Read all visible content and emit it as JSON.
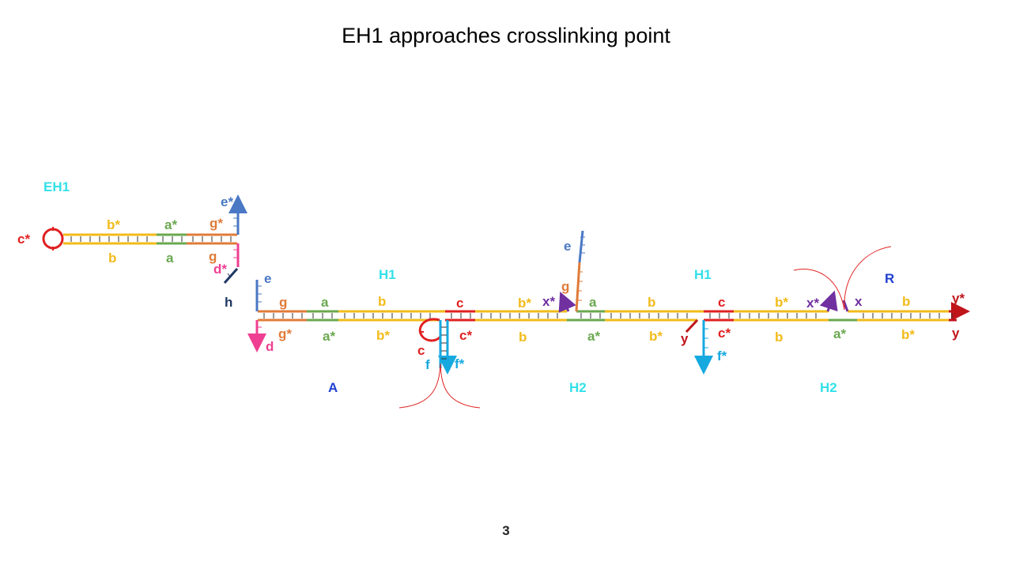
{
  "title": "EH1 approaches crosslinking point",
  "page_number": "3",
  "colors": {
    "b": "#f2bb1a",
    "a": "#6aa84f",
    "g": "#e07b39",
    "c": "#e02020",
    "e": "#4a78c4",
    "d": "#ef3f92",
    "h": "#1f3864",
    "f": "#16a9e0",
    "x": "#7030a0",
    "y": "#c0141b",
    "cyan": "#33e0e8",
    "blue": "#1f3fd0"
  },
  "labels": {
    "eh1": {
      "name": "EH1",
      "c_star": "c*",
      "b_star": "b*",
      "a_star": "a*",
      "g_star": "g*",
      "e_star": "e*",
      "b": "b",
      "a": "a",
      "g": "g",
      "d_star": "d*",
      "h": "h"
    },
    "left": {
      "e": "e",
      "g": "g",
      "a": "a",
      "b": "b",
      "g_star": "g*",
      "a_star": "a*",
      "b_star": "b*",
      "d": "d",
      "complex_A": "A"
    },
    "h1_first": {
      "name": "H1",
      "c": "c",
      "c_star": "c*",
      "c_loop": "c",
      "f": "f",
      "f_star": "f*",
      "b_star": "b*",
      "b": "b",
      "x_star": "x*",
      "e": "e",
      "g": "g"
    },
    "h2_first": {
      "name": "H2",
      "a": "a",
      "b": "b",
      "a_star": "a*",
      "b_star": "b*"
    },
    "h1_second": {
      "name": "H1",
      "c": "c",
      "c_star": "c*",
      "y": "y",
      "f_star": "f*",
      "b_star": "b*",
      "b": "b",
      "x_star": "x*"
    },
    "h2_second": {
      "name": "H2",
      "a_star": "a*"
    },
    "right": {
      "x": "x",
      "b": "b",
      "b_star": "b*",
      "y_star": "y*",
      "y": "y",
      "complex_R": "R"
    }
  }
}
